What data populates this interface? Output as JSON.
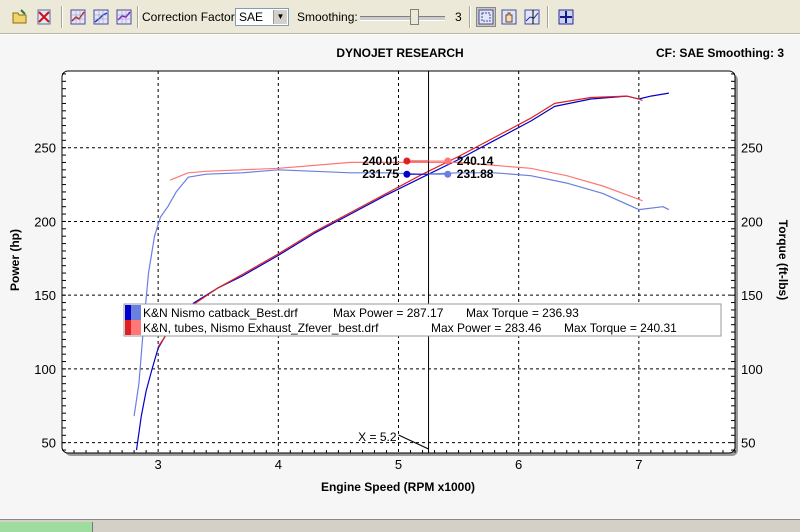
{
  "toolbar": {
    "correction_label": "Correction Factor:",
    "correction_value": "SAE",
    "smoothing_label": "Smoothing:",
    "smoothing_value": "3"
  },
  "chart_data": {
    "type": "line",
    "title": "DYNOJET RESEARCH",
    "subtitle": "CF: SAE  Smoothing: 3",
    "xlabel": "Engine Speed (RPM x1000)",
    "ylabel_left": "Power (hp)",
    "ylabel_right": "Torque (ft-lbs)",
    "xlim": [
      2.2,
      7.8
    ],
    "ylim": [
      43,
      302
    ],
    "x_ticks": [
      "3",
      "4",
      "5",
      "6",
      "7"
    ],
    "y_ticks": [
      "50",
      "100",
      "150",
      "200",
      "250"
    ],
    "cursor": {
      "x": 5.25,
      "label": "X = 5.2"
    },
    "markers": [
      {
        "x": 5.07,
        "y": 241,
        "label": "240.01",
        "series": "run2"
      },
      {
        "x": 5.07,
        "y": 232,
        "label": "231.75",
        "series": "run1"
      },
      {
        "x": 5.41,
        "y": 241,
        "label": "240.14",
        "series": "run2"
      },
      {
        "x": 5.41,
        "y": 232,
        "label": "231.88",
        "series": "run1"
      }
    ],
    "legend": [
      {
        "name": "K&N Nismo catback_Best.drf",
        "max_power_label": "Max Power = 287.17",
        "max_torque_label": "Max Torque = 236.93",
        "color": "#0000cc"
      },
      {
        "name": "K&N, tubes, Nismo Exhaust_Zfever_best.drf",
        "max_power_label": "Max Power = 283.46",
        "max_torque_label": "Max Torque = 240.31",
        "color": "#e02020"
      }
    ],
    "series": [
      {
        "id": "power1",
        "color": "#0000cc",
        "x": [
          2.82,
          2.86,
          2.9,
          2.95,
          3.0,
          3.1,
          3.3,
          3.5,
          3.7,
          4.0,
          4.3,
          4.6,
          4.9,
          5.2,
          5.5,
          5.8,
          6.1,
          6.3,
          6.6,
          6.9,
          7.0,
          7.1,
          7.25
        ],
        "y": [
          45,
          68,
          85,
          100,
          114,
          128,
          145,
          155,
          163,
          177,
          192,
          205,
          218,
          230,
          242,
          255,
          268,
          278,
          283,
          285,
          283,
          285,
          287
        ]
      },
      {
        "id": "power2",
        "color": "#e02020",
        "x": [
          3.0,
          3.1,
          3.3,
          3.5,
          3.7,
          4.0,
          4.3,
          4.6,
          4.9,
          5.2,
          5.5,
          5.8,
          6.1,
          6.3,
          6.6,
          6.9,
          7.0,
          7.03
        ],
        "y": [
          115,
          127,
          144,
          155,
          164,
          178,
          193,
          206,
          219,
          232,
          244,
          257,
          270,
          280,
          284,
          285,
          283,
          282
        ]
      },
      {
        "id": "torque1",
        "color": "#6a7fe0",
        "x": [
          2.8,
          2.84,
          2.88,
          2.92,
          2.97,
          3.02,
          3.08,
          3.15,
          3.25,
          3.4,
          3.7,
          4.0,
          4.3,
          4.6,
          4.9,
          5.2,
          5.5,
          5.8,
          6.1,
          6.4,
          6.7,
          7.0,
          7.2,
          7.25
        ],
        "y": [
          68,
          90,
          130,
          165,
          190,
          203,
          210,
          220,
          230,
          232,
          233,
          235,
          234,
          233,
          233,
          232,
          233,
          233,
          231,
          226,
          219,
          208,
          210,
          208
        ]
      },
      {
        "id": "torque2",
        "color": "#ff7777",
        "x": [
          3.1,
          3.25,
          3.4,
          3.7,
          4.0,
          4.3,
          4.6,
          4.9,
          5.2,
          5.5,
          5.8,
          6.1,
          6.4,
          6.7,
          7.0,
          7.03
        ],
        "y": [
          228,
          233,
          234,
          235,
          236,
          238,
          240,
          240,
          240,
          240,
          238,
          236,
          231,
          224,
          215,
          214
        ]
      }
    ]
  }
}
